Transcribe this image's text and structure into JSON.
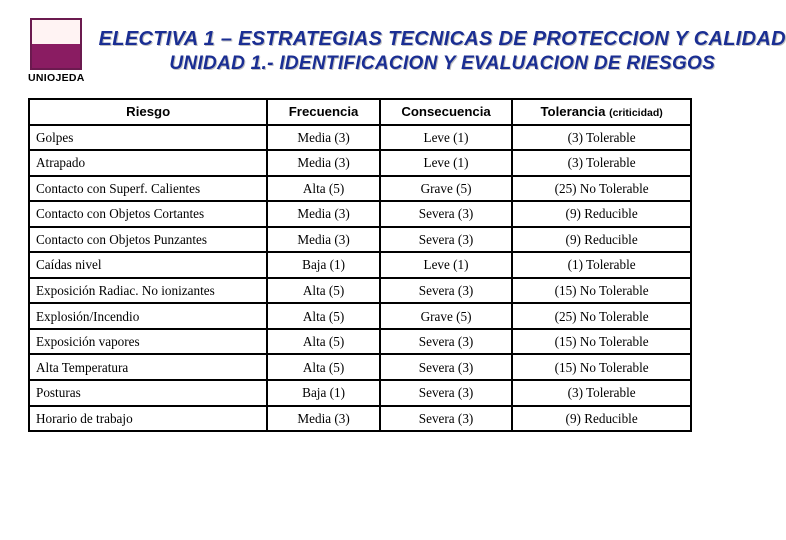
{
  "logo_label": "UNIOJEDA",
  "title_main": "ELECTIVA 1 – ESTRATEGIAS TECNICAS DE PROTECCION Y CALIDAD",
  "title_sub": "UNIDAD 1.- IDENTIFICACION Y  EVALUACION DE RIESGOS",
  "table": {
    "columns": [
      {
        "key": "riesgo",
        "label": "Riesgo",
        "align": "center"
      },
      {
        "key": "frecuencia",
        "label": "Frecuencia",
        "align": "center"
      },
      {
        "key": "consecuencia",
        "label": "Consecuencia",
        "align": "center"
      },
      {
        "key": "tolerancia",
        "label": "Tolerancia",
        "suffix": "(criticidad)",
        "align": "center"
      }
    ],
    "rows": [
      {
        "riesgo": "Golpes",
        "frecuencia": "Media (3)",
        "consecuencia": "Leve (1)",
        "tolerancia": "(3) Tolerable"
      },
      {
        "riesgo": "Atrapado",
        "frecuencia": "Media (3)",
        "consecuencia": "Leve (1)",
        "tolerancia": "(3) Tolerable"
      },
      {
        "riesgo": "Contacto con Superf. Calientes",
        "frecuencia": "Alta (5)",
        "consecuencia": "Grave (5)",
        "tolerancia": "(25) No Tolerable"
      },
      {
        "riesgo": "Contacto con Objetos Cortantes",
        "frecuencia": "Media (3)",
        "consecuencia": "Severa (3)",
        "tolerancia": "(9) Reducible"
      },
      {
        "riesgo": "Contacto con Objetos Punzantes",
        "frecuencia": "Media (3)",
        "consecuencia": "Severa (3)",
        "tolerancia": "(9) Reducible"
      },
      {
        "riesgo": "Caídas nivel",
        "frecuencia": "Baja (1)",
        "consecuencia": "Leve (1)",
        "tolerancia": "(1) Tolerable"
      },
      {
        "riesgo": "Exposición Radiac. No ionizantes",
        "frecuencia": "Alta (5)",
        "consecuencia": "Severa (3)",
        "tolerancia": "(15) No Tolerable"
      },
      {
        "riesgo": "Explosión/Incendio",
        "frecuencia": "Alta (5)",
        "consecuencia": "Grave (5)",
        "tolerancia": "(25) No Tolerable"
      },
      {
        "riesgo": "Exposición vapores",
        "frecuencia": "Alta (5)",
        "consecuencia": "Severa (3)",
        "tolerancia": "(15) No Tolerable"
      },
      {
        "riesgo": "Alta Temperatura",
        "frecuencia": "Alta (5)",
        "consecuencia": "Severa (3)",
        "tolerancia": "(15) No Tolerable"
      },
      {
        "riesgo": "Posturas",
        "frecuencia": "Baja (1)",
        "consecuencia": "Severa (3)",
        "tolerancia": "(3) Tolerable"
      },
      {
        "riesgo": "Horario de trabajo",
        "frecuencia": "Media (3)",
        "consecuencia": "Severa (3)",
        "tolerancia": "(9) Reducible"
      }
    ],
    "border_color": "#000000",
    "font_size_pt": 10,
    "title_color": "#1a2e93"
  }
}
